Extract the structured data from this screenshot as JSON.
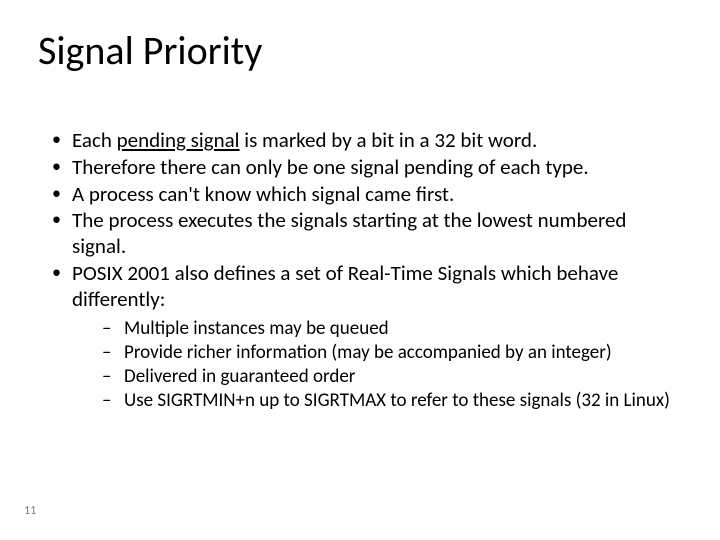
{
  "title": "Signal Priority",
  "bullets": [
    {
      "pre": "Each ",
      "underlined": "pending signal",
      "post": " is marked by a bit in a 32 bit word."
    },
    {
      "text": "Therefore there can only be one signal pending of each type."
    },
    {
      "text": "A process can't know which signal came first."
    },
    {
      "text": "The process executes the signals starting at the lowest numbered signal."
    },
    {
      "text": "POSIX 2001 also defines a set of Real-Time Signals which behave differently:"
    }
  ],
  "subbullets": [
    "Multiple instances may be queued",
    "Provide richer information (may be accompanied by an integer)",
    "Delivered in guaranteed order",
    "Use SIGRTMIN+n up to SIGRTMAX to refer to these signals (32 in Linux)"
  ],
  "page_number": "11"
}
